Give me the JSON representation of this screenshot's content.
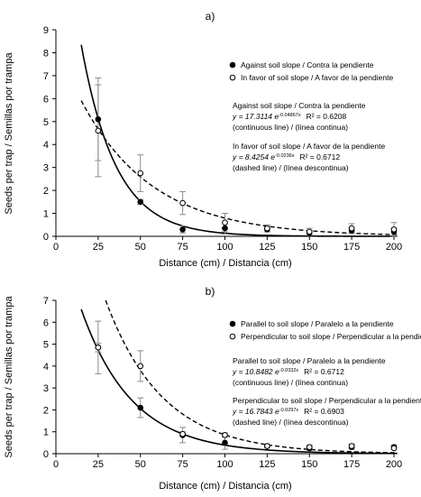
{
  "chart_data": [
    {
      "type": "scatter",
      "title": "a)",
      "xlabel": "Distance (cm) / Distancia (cm)",
      "ylabel": "Seeds per trap / Semillas por trampa",
      "xlim": [
        0,
        200
      ],
      "ylim": [
        0,
        9
      ],
      "xticks": [
        0,
        25,
        50,
        75,
        100,
        125,
        150,
        175,
        200
      ],
      "yticks": [
        0,
        1,
        2,
        3,
        4,
        5,
        6,
        7,
        8,
        9
      ],
      "legend_position": "right",
      "series": [
        {
          "name": "Against soil slope / Contra la pendiente",
          "marker": "filled-circle",
          "line": "continuous",
          "x": [
            25,
            50,
            75,
            100,
            125,
            150,
            175,
            200
          ],
          "y": [
            5.1,
            1.5,
            0.3,
            0.35,
            0.3,
            0.15,
            0.25,
            0.2
          ],
          "err": [
            1.8,
            0.1,
            0.15,
            0.25,
            0.1,
            0.1,
            0.1,
            0.15
          ],
          "fit": {
            "a": 17.3114,
            "b": 0.04867
          }
        },
        {
          "name": "In favor of soil slope / A favor de la pendiente",
          "marker": "open-circle",
          "line": "dashed",
          "x": [
            25,
            50,
            75,
            100,
            125,
            150,
            175,
            200
          ],
          "y": [
            4.6,
            2.75,
            1.45,
            0.6,
            0.35,
            0.2,
            0.35,
            0.3
          ],
          "err": [
            2.0,
            0.8,
            0.5,
            0.4,
            0.15,
            0.15,
            0.2,
            0.3
          ],
          "fit": {
            "a": 8.4254,
            "b": 0.0236
          }
        }
      ],
      "equations": [
        {
          "heading": "Against soil slope / Contra la pendiente",
          "formula": "y = 17.3114 e",
          "exponent": "-0.04867x",
          "r2": "R² = 0.6208",
          "note": "(continuous line) / (línea continua)"
        },
        {
          "heading": "In favor of soil slope / A favor de la pendiente",
          "formula": "y = 8.4254 e",
          "exponent": "-0.0236x",
          "r2": "R² = 0.6712",
          "note": "(dashed line) / (línea descontinua)"
        }
      ]
    },
    {
      "type": "scatter",
      "title": "b)",
      "xlabel": "Distance (cm) / Distancia (cm)",
      "ylabel": "Seeds per trap / Semillas por trampa",
      "xlim": [
        0,
        200
      ],
      "ylim": [
        0,
        7
      ],
      "xticks": [
        0,
        25,
        50,
        75,
        100,
        125,
        150,
        175,
        200
      ],
      "yticks": [
        0,
        1,
        2,
        3,
        4,
        5,
        6,
        7
      ],
      "legend_position": "right",
      "series": [
        {
          "name": "Parallel to soil slope / Paralelo a la pendiente",
          "marker": "filled-circle",
          "line": "continuous",
          "x": [
            25,
            50,
            75,
            100,
            125,
            150,
            175,
            200
          ],
          "y": [
            4.85,
            2.1,
            0.85,
            0.5,
            0.35,
            0.25,
            0.3,
            0.3
          ],
          "err": [
            1.2,
            0.45,
            0.35,
            0.3,
            0.05,
            0.1,
            0.1,
            0.1
          ],
          "fit": {
            "a": 10.8482,
            "b": 0.0332
          }
        },
        {
          "name": "Perpendicular to soil slope / Perpendicular a la pendiente",
          "marker": "open-circle",
          "line": "dashed",
          "x": [
            25,
            50,
            75,
            100,
            125,
            150,
            175,
            200
          ],
          "y": [
            4.85,
            4.0,
            0.9,
            0.85,
            0.35,
            0.3,
            0.35,
            0.25
          ],
          "err": [
            0.2,
            0.7,
            0.1,
            0.1,
            0.05,
            0.1,
            0.1,
            0.05
          ],
          "fit": {
            "a": 16.7843,
            "b": 0.0297
          }
        }
      ],
      "equations": [
        {
          "heading": "Parallel to soil slope / Paralelo a la pendiente",
          "formula": "y = 10.8482 e",
          "exponent": "-0.0332x",
          "r2": "R² = 0.6712",
          "note": "(continuous line) / (línea continua)"
        },
        {
          "heading": "Perpendicular to soil slope / Perpendicular a la pendiente",
          "formula": "y = 16.7843 e",
          "exponent": "-0.0297x",
          "r2": "R² = 0.6903",
          "note": "(dashed line) / (línea descontinua)"
        }
      ]
    }
  ]
}
